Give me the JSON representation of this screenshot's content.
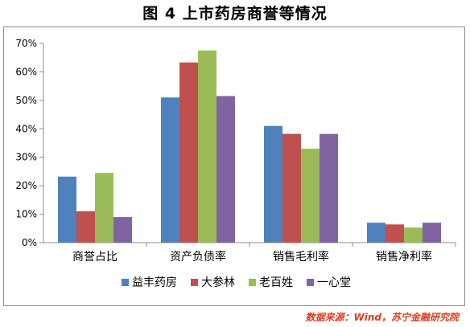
{
  "title": "图 4  上市药房商誉等情况",
  "source": "数据来源：Wind，苏宁金融研究院",
  "chart_data": {
    "type": "bar",
    "categories": [
      "商誉占比",
      "资产负债率",
      "销售毛利率",
      "销售净利率"
    ],
    "series": [
      {
        "name": "益丰药房",
        "color": "#4f81bd",
        "values": [
          23.2,
          51.0,
          41.0,
          7.0
        ]
      },
      {
        "name": "大参林",
        "color": "#c0504d",
        "values": [
          11.0,
          63.3,
          38.2,
          6.4
        ]
      },
      {
        "name": "老百姓",
        "color": "#9bbb59",
        "values": [
          24.5,
          67.5,
          33.0,
          5.3
        ]
      },
      {
        "name": "一心堂",
        "color": "#8064a2",
        "values": [
          9.0,
          51.5,
          38.2,
          7.0
        ]
      }
    ],
    "ylim": [
      0,
      70
    ],
    "yticks": [
      "0%",
      "10%",
      "20%",
      "30%",
      "40%",
      "50%",
      "60%",
      "70%"
    ],
    "grid": false,
    "legend": "bottom"
  }
}
